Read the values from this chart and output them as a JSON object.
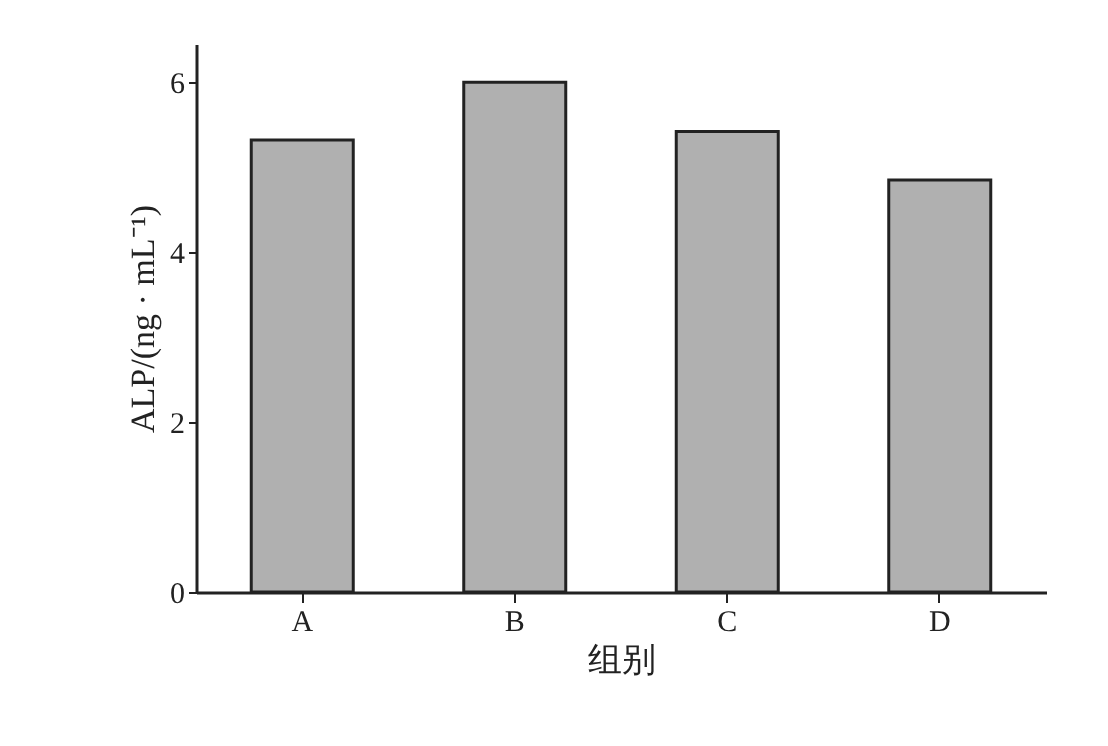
{
  "chart_data": {
    "type": "bar",
    "xlabel": "组别",
    "ylabel": "ALP/(ng · mL⁻¹)",
    "categories": [
      "A",
      "B",
      "C",
      "D"
    ],
    "values": [
      5.32,
      6.0,
      5.42,
      4.85
    ],
    "color": "#b0b0b0",
    "ylim": [
      0,
      6.45
    ],
    "yticks": [
      0,
      2,
      4,
      6
    ],
    "grid": false
  }
}
